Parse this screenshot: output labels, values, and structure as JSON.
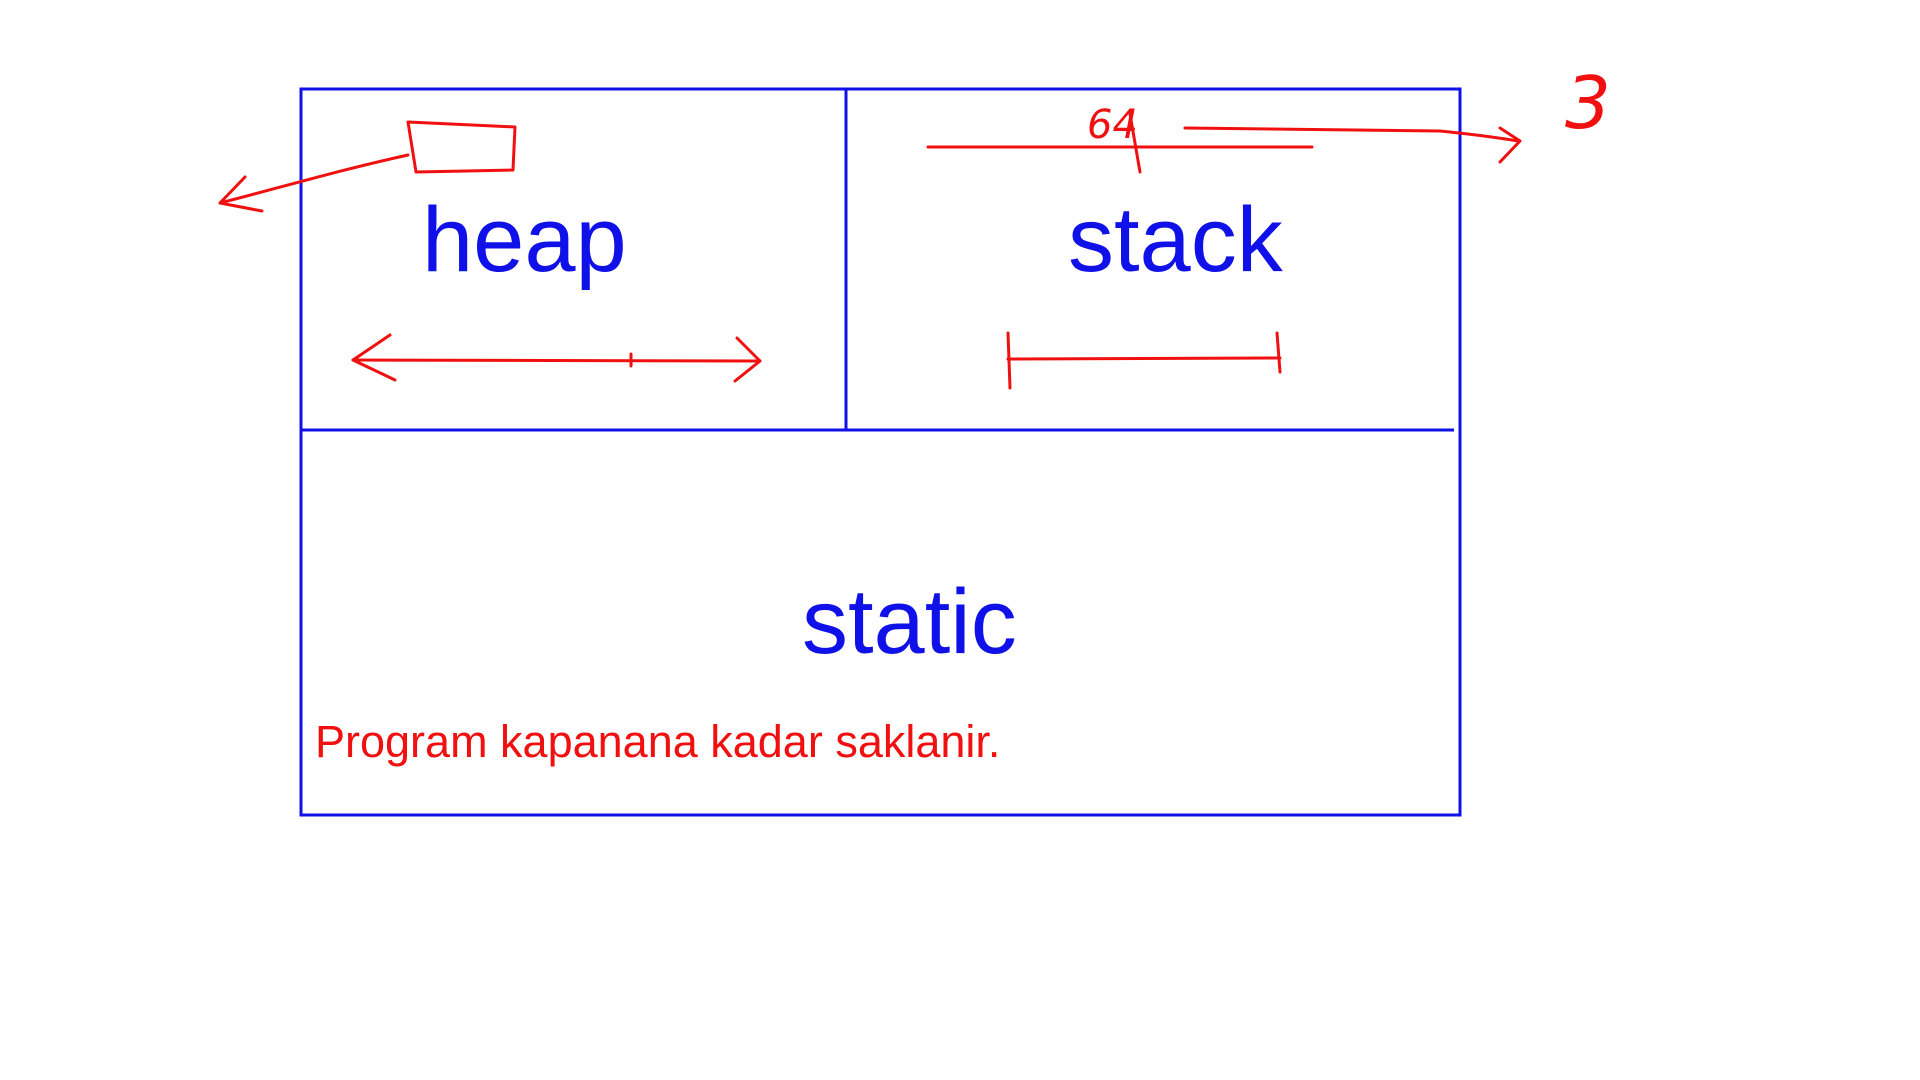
{
  "diagram": {
    "regions": {
      "heap": "heap",
      "stack": "stack",
      "static": "static"
    },
    "note": "Program kapanana kadar saklanir.",
    "handwritten": {
      "stack_value": "64",
      "right_value": "3"
    },
    "colors": {
      "box": "#1010e8",
      "region_label": "#1010e8",
      "annotation": "#f01010",
      "background": "#ffffff"
    }
  }
}
